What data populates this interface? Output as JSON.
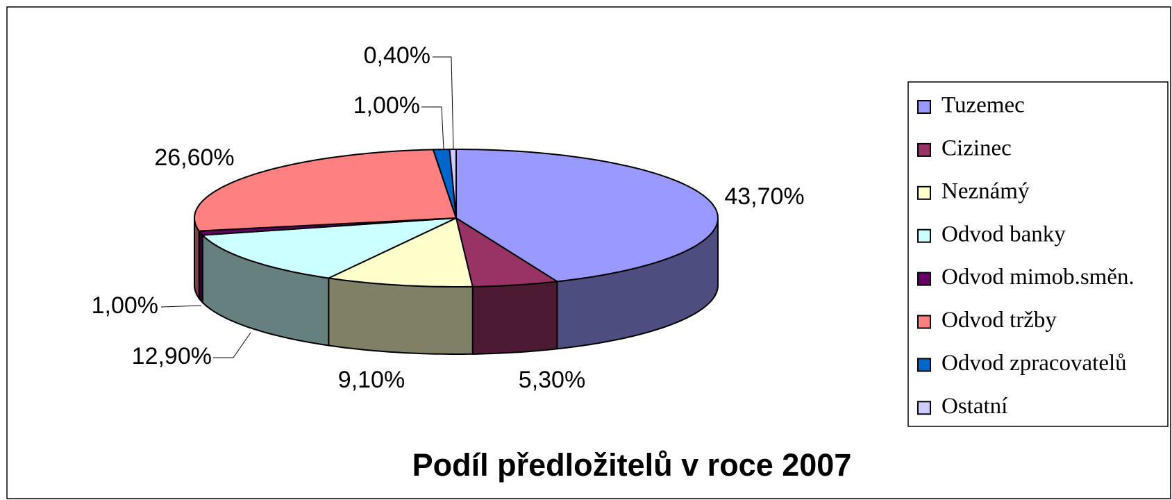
{
  "chart_data": {
    "type": "pie3d",
    "title": "Podíl předložitelů v roce 2007",
    "categories": [
      "Tuzemec",
      "Cizinec",
      "Neznámý",
      "Odvod banky",
      "Odvod mimob.směn.",
      "Odvod tržby",
      "Odvod zpracovatelů",
      "Ostatní"
    ],
    "values": [
      43.7,
      5.3,
      9.1,
      12.9,
      1.0,
      26.6,
      1.0,
      0.4
    ],
    "value_labels": [
      "43,70%",
      "5,30%",
      "9,10%",
      "12,90%",
      "1,00%",
      "26,60%",
      "1,00%",
      "0,40%"
    ],
    "colors": [
      "#9999ff",
      "#993366",
      "#ffffcc",
      "#ccffff",
      "#660066",
      "#ff8080",
      "#0066cc",
      "#ccccff"
    ],
    "legend": "right"
  }
}
